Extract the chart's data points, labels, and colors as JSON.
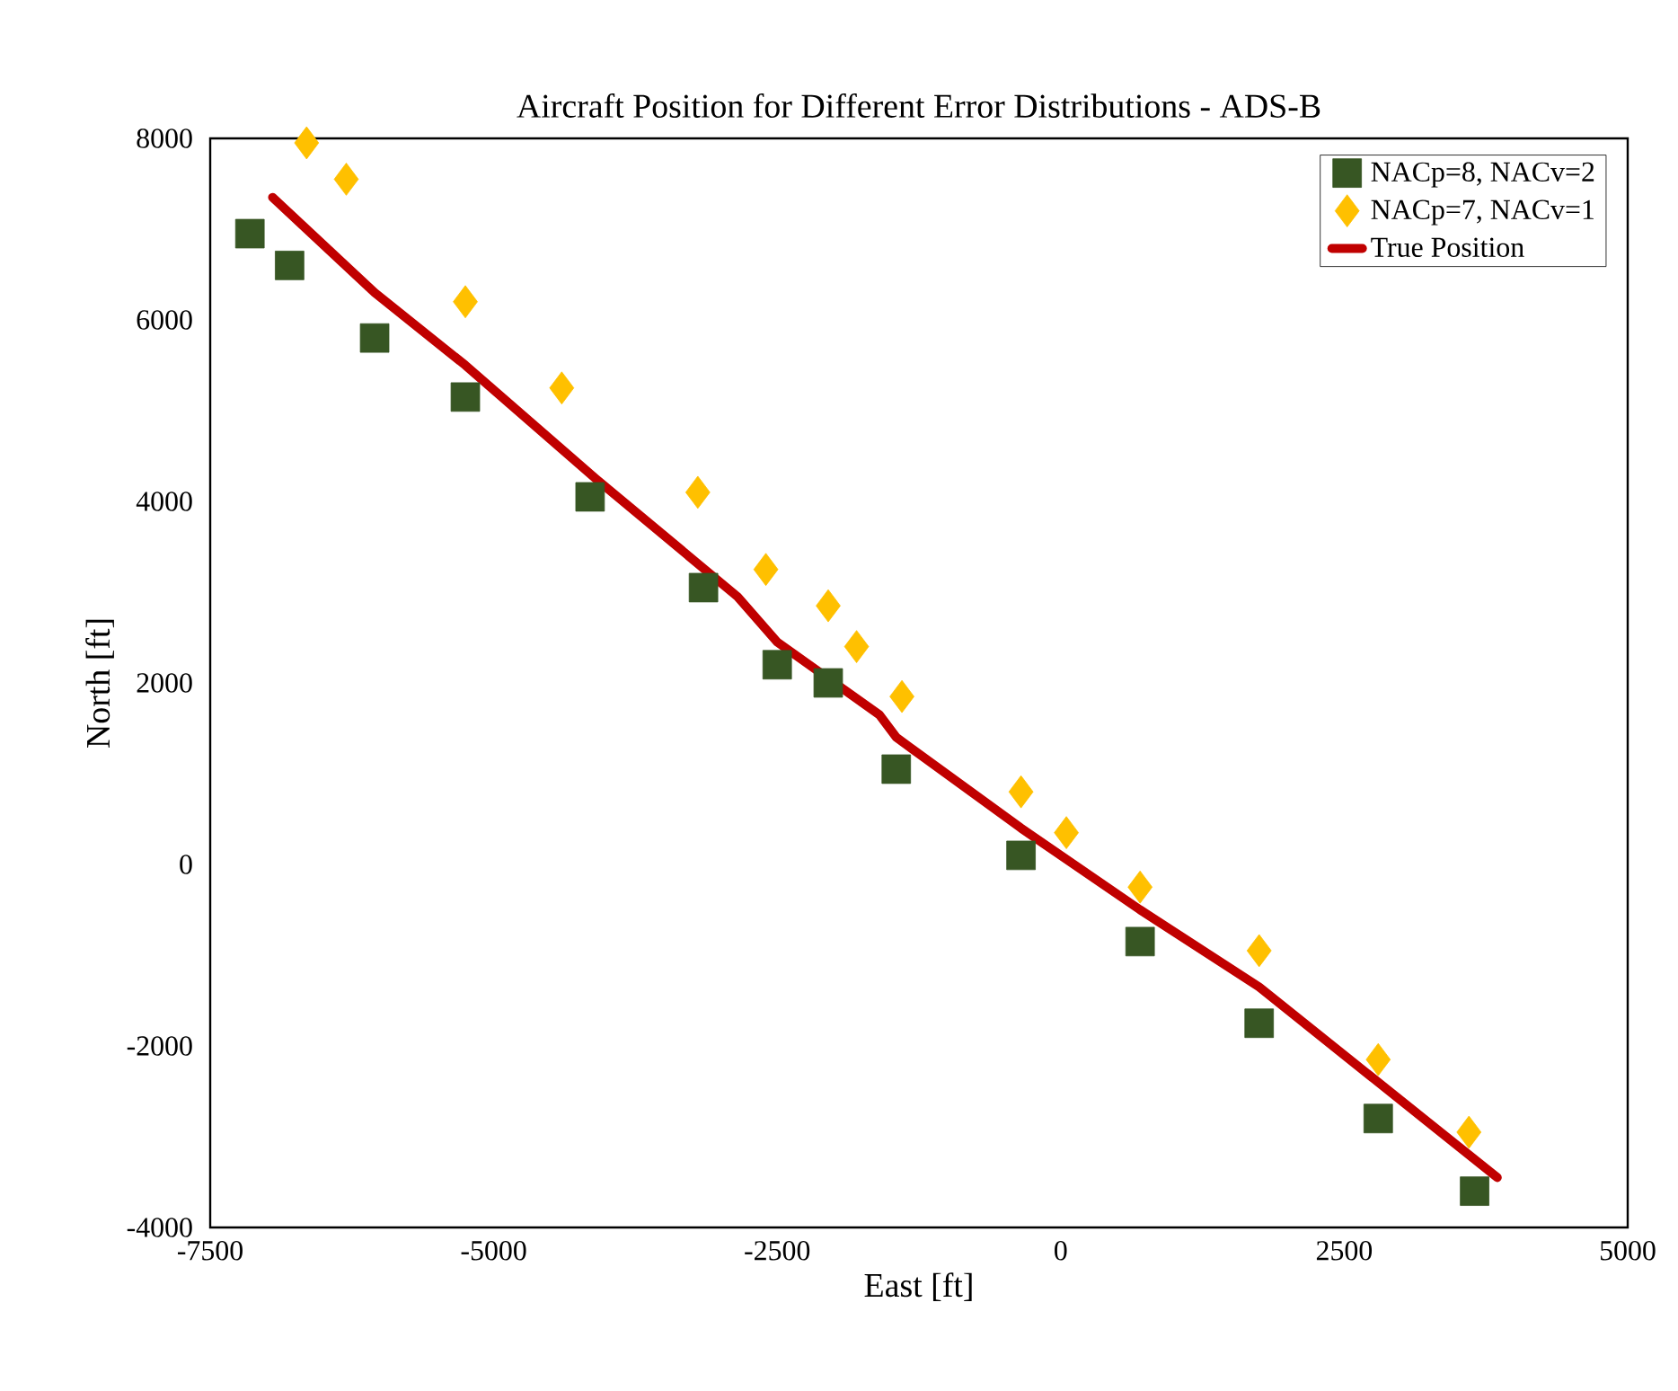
{
  "chart_data": {
    "type": "scatter",
    "title": "Aircraft Position for Different Error Distributions - ADS-B",
    "xlabel": "East [ft]",
    "ylabel": "North [ft]",
    "xlim": [
      -7500,
      5000
    ],
    "xticks": [
      -7500,
      -5000,
      -2500,
      0,
      2500,
      5000
    ],
    "ylim": [
      -4000,
      8000
    ],
    "yticks": [
      -4000,
      -2000,
      0,
      2000,
      4000,
      6000,
      8000
    ],
    "legend": "top right",
    "series": [
      {
        "name": "NACp=8, NACv=2",
        "color": "#375623",
        "marker": "square",
        "x": [
          -7150,
          -6800,
          -6050,
          -5250,
          -4150,
          -3150,
          -2500,
          -2050,
          -1450,
          -350,
          700,
          1750,
          2800,
          3650
        ],
        "values": [
          6950,
          6600,
          5800,
          5150,
          4050,
          3050,
          2200,
          2000,
          1050,
          100,
          -850,
          -1750,
          -2800,
          -3600
        ]
      },
      {
        "name": "NACp=7, NACv=1",
        "color": "#ffc000",
        "marker": "diamond",
        "x": [
          -6650,
          -6300,
          -5250,
          -4400,
          -3200,
          -2600,
          -2050,
          -1800,
          -1400,
          -350,
          50,
          700,
          1750,
          2800,
          3600
        ],
        "values": [
          7950,
          7550,
          6200,
          5250,
          4100,
          3250,
          2850,
          2400,
          1850,
          800,
          350,
          -250,
          -950,
          -2150,
          -2950
        ]
      },
      {
        "name": "True Position",
        "color": "#c00000",
        "type": "line",
        "x": [
          -6950,
          -6050,
          -5250,
          -4100,
          -2850,
          -2500,
          -1600,
          -1450,
          -350,
          700,
          1750,
          2800,
          3850
        ],
        "values": [
          7350,
          6300,
          5500,
          4250,
          2950,
          2450,
          1650,
          1400,
          400,
          -500,
          -1350,
          -2400,
          -3450
        ]
      }
    ]
  }
}
